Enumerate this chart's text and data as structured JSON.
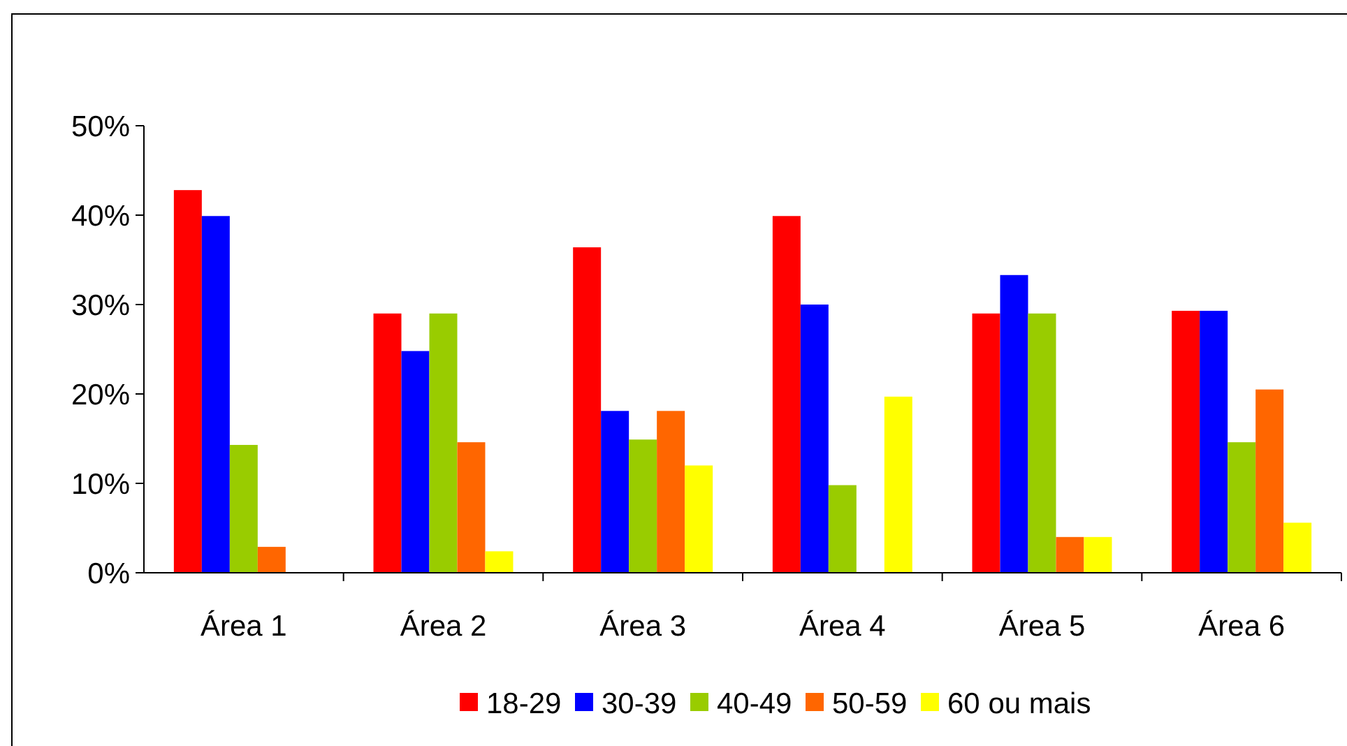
{
  "chart_data": {
    "type": "bar",
    "categories": [
      "Área 1",
      "Área 2",
      "Área 3",
      "Área 4",
      "Área 5",
      "Área 6"
    ],
    "series": [
      {
        "name": "18-29",
        "color": "#ff0000",
        "values": [
          42.8,
          29.0,
          36.4,
          39.9,
          29.0,
          29.3
        ]
      },
      {
        "name": "30-39",
        "color": "#0000ff",
        "values": [
          39.9,
          24.8,
          18.1,
          30.0,
          33.3,
          29.3
        ]
      },
      {
        "name": "40-49",
        "color": "#99cc00",
        "values": [
          14.3,
          29.0,
          14.9,
          9.8,
          29.0,
          14.6
        ]
      },
      {
        "name": "50-59",
        "color": "#ff6600",
        "values": [
          2.9,
          14.6,
          18.1,
          0,
          4.0,
          20.5
        ]
      },
      {
        "name": "60 ou mais",
        "color": "#ffff00",
        "values": [
          0,
          2.4,
          12.0,
          19.7,
          4.0,
          5.6
        ]
      }
    ],
    "ylim": [
      0,
      50
    ],
    "yticks": [
      {
        "value": 0,
        "label": "0%"
      },
      {
        "value": 10,
        "label": "10%"
      },
      {
        "value": 20,
        "label": "20%"
      },
      {
        "value": 30,
        "label": "30%"
      },
      {
        "value": 40,
        "label": "40%"
      },
      {
        "value": 50,
        "label": "50%"
      }
    ],
    "grid": false,
    "legend": "bottom"
  }
}
